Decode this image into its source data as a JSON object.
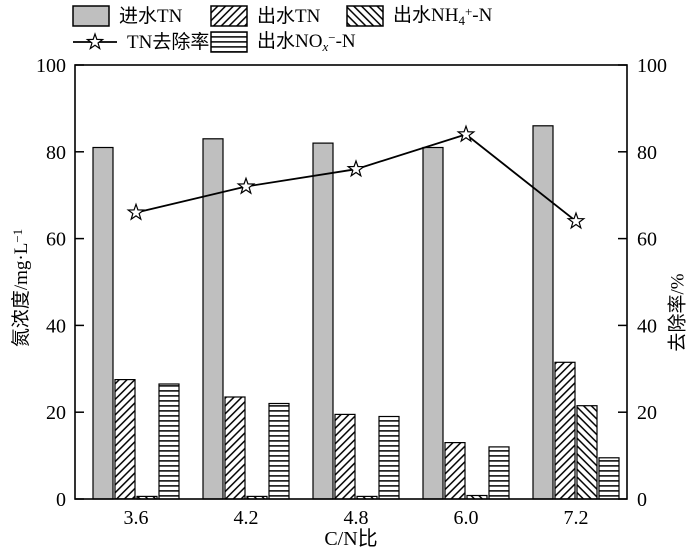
{
  "legend": {
    "items": [
      {
        "label": "进水TN",
        "swatch": "gray-bar"
      },
      {
        "label": "出水TN",
        "swatch": "diagonal-hatch-bar"
      },
      {
        "label_pre": "出水NH",
        "label_sub": "4",
        "label_sup": "+",
        "label_post": "-N",
        "swatch": "backslash-hatch-bar"
      },
      {
        "label": "TN去除率",
        "swatch": "star-line"
      },
      {
        "label_pre": "出水NO",
        "label_sub": "x",
        "label_sup": "−",
        "label_post": "-N",
        "swatch": "horizontal-hatch-bar"
      }
    ]
  },
  "axes": {
    "x_label": "C/N比",
    "left_label_main": "氮浓度/mg·L",
    "left_label_sup": "−1",
    "right_label": "去除率/%"
  },
  "chart_data": {
    "type": "bar",
    "categories": [
      "3.6",
      "4.2",
      "4.8",
      "6.0",
      "7.2"
    ],
    "xlabel": "C/N比",
    "ylabel_left": "氮浓度/mg·L−1",
    "ylabel_right": "去除率/%",
    "ylim_left": [
      0,
      100
    ],
    "ylim_right": [
      0,
      100
    ],
    "yticks": [
      0,
      20,
      40,
      60,
      80,
      100
    ],
    "grid": false,
    "legend_position": "top",
    "bar_series": [
      {
        "name": "进水TN",
        "style": "solid-gray",
        "values": [
          81,
          83,
          82,
          81,
          86
        ]
      },
      {
        "name": "出水TN",
        "style": "diagonal-hatch",
        "values": [
          27.5,
          23.5,
          19.5,
          13,
          31.5
        ]
      },
      {
        "name": "出水NH4+-N",
        "style": "backslash-hatch",
        "values": [
          0.6,
          0.6,
          0.6,
          0.8,
          21.5
        ]
      },
      {
        "name": "出水NOx−-N",
        "style": "horizontal-hatch",
        "values": [
          26.5,
          22,
          19,
          12,
          9.5
        ]
      }
    ],
    "line_series": [
      {
        "name": "TN去除率",
        "axis": "right",
        "marker": "open-star",
        "values": [
          66,
          72,
          76,
          84,
          64
        ]
      }
    ],
    "colors": {
      "bar_gray": "#bfbfbf",
      "stroke": "#000000",
      "background": "#ffffff"
    }
  }
}
